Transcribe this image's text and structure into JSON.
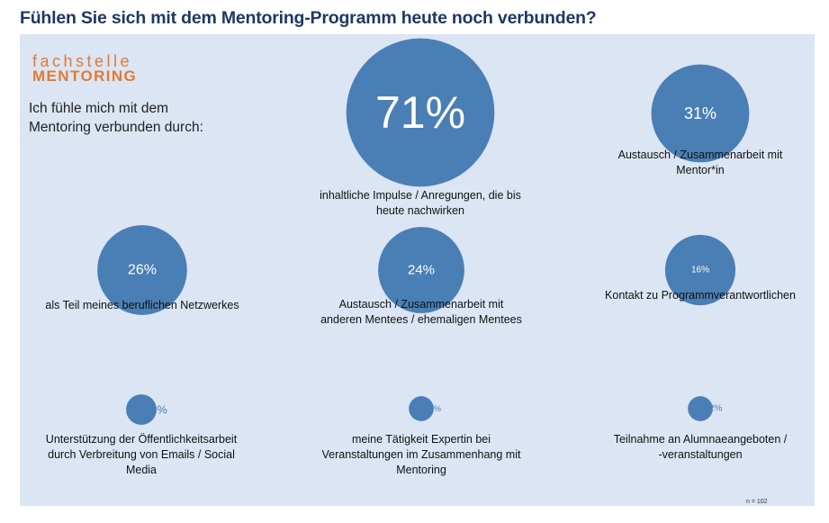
{
  "title": "Fühlen Sie sich mit dem Mentoring-Programm heute noch verbunden?",
  "logo": {
    "line1": "fachstelle",
    "line2": "MENTORING"
  },
  "intro_text": "Ich fühle mich mit dem Mentoring verbunden durch:",
  "sample_size": "n = 102",
  "colors": {
    "bubble": "#4a7fb5",
    "panel": "#dbe5f3",
    "title": "#1f3864",
    "logo": "#e07a33"
  },
  "chart_data": {
    "type": "bubble",
    "title": "Fühlen Sie sich mit dem Mentoring-Programm heute noch verbunden?",
    "unit": "%",
    "items": [
      {
        "value": 71,
        "label": "71%",
        "lines": [
          "inhaltliche Impulse / Anregungen, die bis",
          "heute nachwirken"
        ]
      },
      {
        "value": 31,
        "label": "31%",
        "lines": [
          "Austausch / Zusammenarbeit mit",
          "Mentor*in"
        ]
      },
      {
        "value": 26,
        "label": "26%",
        "lines": [
          "als Teil meines beruflichen Netzwerkes"
        ]
      },
      {
        "value": 24,
        "label": "24%",
        "lines": [
          "Austausch / Zusammenarbeit mit",
          "anderen Mentees / ehemaligen Mentees"
        ]
      },
      {
        "value": 16,
        "label": "16%",
        "lines": [
          "Kontakt zu Programmverantwortlichen"
        ]
      },
      {
        "value": 3,
        "label": "3%",
        "lines": [
          "Unterstützung der Öffentlichkeitsarbeit",
          "durch Verbreitung von Emails / Social",
          "Media"
        ]
      },
      {
        "value": 2,
        "label": "2%",
        "lines": [
          "meine Tätigkeit Expertin bei",
          "Veranstaltungen im Zusammenhang mit",
          "Mentoring"
        ]
      },
      {
        "value": 2,
        "label": "2%",
        "lines": [
          "Teilnahme an Alumnaeangeboten /",
          "-veranstaltungen"
        ]
      }
    ]
  }
}
